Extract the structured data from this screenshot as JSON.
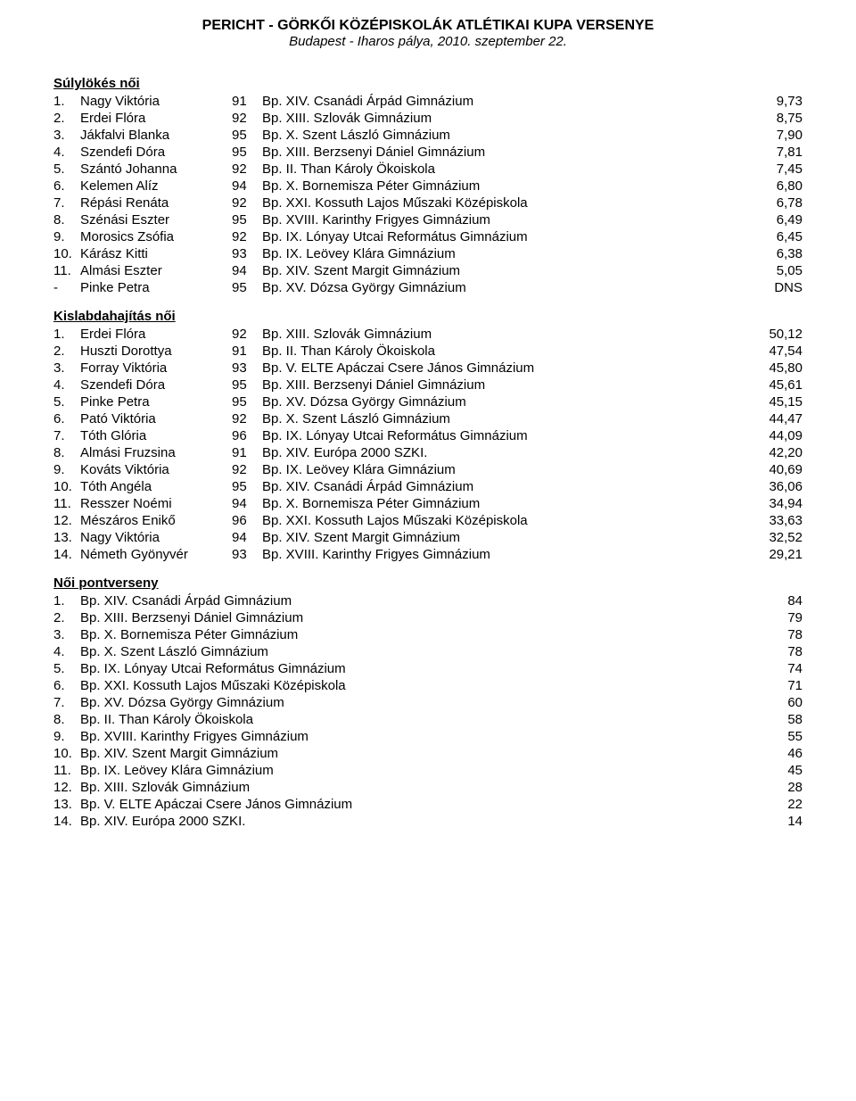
{
  "header": {
    "title": "PERICHT - GÖRKŐI KÖZÉPISKOLÁK ATLÉTIKAI KUPA VERSENYE",
    "subtitle": "Budapest - Iharos pálya, 2010. szeptember 22."
  },
  "sections": [
    {
      "title": "Súlylökés női",
      "type": "results",
      "rows": [
        {
          "rank": "1.",
          "name": "Nagy Viktória",
          "yr": "91",
          "school": "Bp. XIV. Csanádi Árpád Gimnázium",
          "score": "9,73"
        },
        {
          "rank": "2.",
          "name": "Erdei Flóra",
          "yr": "92",
          "school": "Bp. XIII. Szlovák Gimnázium",
          "score": "8,75"
        },
        {
          "rank": "3.",
          "name": "Jákfalvi Blanka",
          "yr": "95",
          "school": "Bp. X. Szent László Gimnázium",
          "score": "7,90"
        },
        {
          "rank": "4.",
          "name": "Szendefi Dóra",
          "yr": "95",
          "school": "Bp. XIII. Berzsenyi Dániel Gimnázium",
          "score": "7,81"
        },
        {
          "rank": "5.",
          "name": "Szántó Johanna",
          "yr": "92",
          "school": "Bp. II. Than Károly Ökoiskola",
          "score": "7,45"
        },
        {
          "rank": "6.",
          "name": "Kelemen Alíz",
          "yr": "94",
          "school": "Bp. X. Bornemisza Péter Gimnázium",
          "score": "6,80"
        },
        {
          "rank": "7.",
          "name": "Répási Renáta",
          "yr": "92",
          "school": "Bp. XXI. Kossuth Lajos Műszaki Középiskola",
          "score": "6,78"
        },
        {
          "rank": "8.",
          "name": "Szénási Eszter",
          "yr": "95",
          "school": "Bp. XVIII. Karinthy Frigyes Gimnázium",
          "score": "6,49"
        },
        {
          "rank": "9.",
          "name": "Morosics Zsófia",
          "yr": "92",
          "school": "Bp. IX. Lónyay Utcai Református Gimnázium",
          "score": "6,45"
        },
        {
          "rank": "10.",
          "name": "Kárász Kitti",
          "yr": "93",
          "school": "Bp. IX. Leövey Klára Gimnázium",
          "score": "6,38"
        },
        {
          "rank": "11.",
          "name": "Almási Eszter",
          "yr": "94",
          "school": "Bp. XIV. Szent Margit Gimnázium",
          "score": "5,05"
        },
        {
          "rank": "-",
          "name": "Pinke Petra",
          "yr": "95",
          "school": "Bp. XV. Dózsa György Gimnázium",
          "score": "DNS"
        }
      ]
    },
    {
      "title": "Kislabdahajítás női",
      "type": "results",
      "rows": [
        {
          "rank": "1.",
          "name": "Erdei Flóra",
          "yr": "92",
          "school": "Bp. XIII. Szlovák Gimnázium",
          "score": "50,12"
        },
        {
          "rank": "2.",
          "name": "Huszti Dorottya",
          "yr": "91",
          "school": "Bp. II. Than Károly Ökoiskola",
          "score": "47,54"
        },
        {
          "rank": "3.",
          "name": "Forray Viktória",
          "yr": "93",
          "school": "Bp. V. ELTE Apáczai Csere János Gimnázium",
          "score": "45,80"
        },
        {
          "rank": "4.",
          "name": "Szendefi Dóra",
          "yr": "95",
          "school": "Bp. XIII. Berzsenyi Dániel Gimnázium",
          "score": "45,61"
        },
        {
          "rank": "5.",
          "name": "Pinke Petra",
          "yr": "95",
          "school": "Bp. XV. Dózsa György Gimnázium",
          "score": "45,15"
        },
        {
          "rank": "6.",
          "name": "Pató Viktória",
          "yr": "92",
          "school": "Bp. X. Szent László Gimnázium",
          "score": "44,47"
        },
        {
          "rank": "7.",
          "name": "Tóth Glória",
          "yr": "96",
          "school": "Bp. IX. Lónyay Utcai Református Gimnázium",
          "score": "44,09"
        },
        {
          "rank": "8.",
          "name": "Almási Fruzsina",
          "yr": "91",
          "school": "Bp. XIV. Európa 2000 SZKI.",
          "score": "42,20"
        },
        {
          "rank": "9.",
          "name": "Kováts Viktória",
          "yr": "92",
          "school": "Bp. IX. Leövey Klára Gimnázium",
          "score": "40,69"
        },
        {
          "rank": "10.",
          "name": "Tóth Angéla",
          "yr": "95",
          "school": "Bp. XIV. Csanádi Árpád Gimnázium",
          "score": "36,06"
        },
        {
          "rank": "11.",
          "name": "Resszer Noémi",
          "yr": "94",
          "school": "Bp. X. Bornemisza Péter Gimnázium",
          "score": "34,94"
        },
        {
          "rank": "12.",
          "name": "Mészáros Enikő",
          "yr": "96",
          "school": "Bp. XXI. Kossuth Lajos Műszaki Középiskola",
          "score": "33,63"
        },
        {
          "rank": "13.",
          "name": "Nagy Viktória",
          "yr": "94",
          "school": "Bp. XIV. Szent Margit Gimnázium",
          "score": "32,52"
        },
        {
          "rank": "14.",
          "name": "Németh Gyönyvér",
          "yr": "93",
          "school": "Bp. XVIII. Karinthy Frigyes Gimnázium",
          "score": "29,21"
        }
      ]
    },
    {
      "title": "Női pontverseny",
      "type": "points",
      "rows": [
        {
          "rank": "1.",
          "team": "Bp. XIV. Csanádi Árpád Gimnázium",
          "pts": "84"
        },
        {
          "rank": "2.",
          "team": "Bp. XIII. Berzsenyi Dániel Gimnázium",
          "pts": "79"
        },
        {
          "rank": "3.",
          "team": "Bp. X. Bornemisza Péter Gimnázium",
          "pts": "78"
        },
        {
          "rank": "4.",
          "team": "Bp. X. Szent László Gimnázium",
          "pts": "78"
        },
        {
          "rank": "5.",
          "team": "Bp. IX. Lónyay Utcai Református Gimnázium",
          "pts": "74"
        },
        {
          "rank": "6.",
          "team": "Bp. XXI. Kossuth Lajos Műszaki Középiskola",
          "pts": "71"
        },
        {
          "rank": "7.",
          "team": "Bp. XV. Dózsa György Gimnázium",
          "pts": "60"
        },
        {
          "rank": "8.",
          "team": "Bp. II. Than Károly Ökoiskola",
          "pts": "58"
        },
        {
          "rank": "9.",
          "team": "Bp. XVIII. Karinthy Frigyes Gimnázium",
          "pts": "55"
        },
        {
          "rank": "10.",
          "team": "Bp. XIV. Szent Margit Gimnázium",
          "pts": "46"
        },
        {
          "rank": "11.",
          "team": "Bp. IX. Leövey Klára Gimnázium",
          "pts": "45"
        },
        {
          "rank": "12.",
          "team": "Bp. XIII. Szlovák Gimnázium",
          "pts": "28"
        },
        {
          "rank": "13.",
          "team": "Bp. V. ELTE Apáczai Csere János Gimnázium",
          "pts": "22"
        },
        {
          "rank": "14.",
          "team": "Bp. XIV. Európa 2000 SZKI.",
          "pts": "14"
        }
      ]
    }
  ]
}
